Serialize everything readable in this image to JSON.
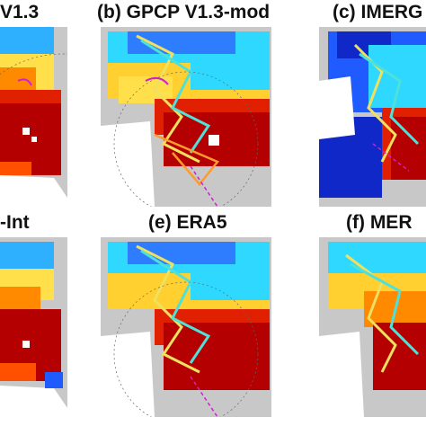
{
  "panels": [
    {
      "title": "V1.3"
    },
    {
      "title": "(b) GPCP V1.3-mod"
    },
    {
      "title": "(c) IMERG"
    },
    {
      "title": "-Int"
    },
    {
      "title": "(e) ERA5"
    },
    {
      "title": "(f) MER"
    }
  ],
  "colors": {
    "background_land": "#c8c8c8",
    "dark_red": "#b40000",
    "red": "#e02000",
    "orange": "#ff8a00",
    "yellow": "#ffe600",
    "cyan": "#2fd8ff",
    "blue": "#1f5bff",
    "dark_blue": "#1028c8",
    "track": "#f0e060",
    "track_alt": "#4fe0d8",
    "contour": "#d020d0"
  }
}
